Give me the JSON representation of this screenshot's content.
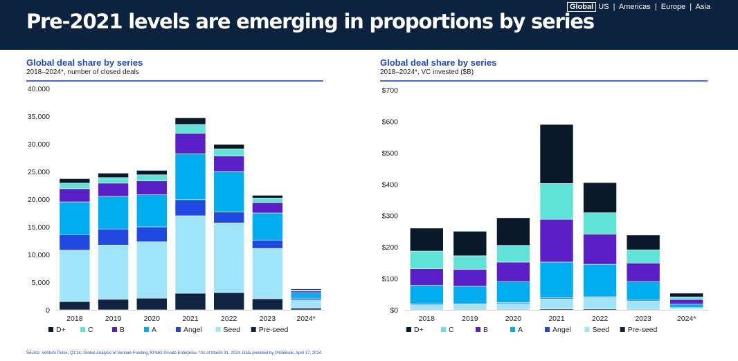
{
  "header": {
    "title": "Pre-2021 levels are emerging in proportions by series",
    "regions": [
      "Global",
      "US",
      "Americas",
      "Europe",
      "Asia"
    ],
    "selected_region": "Global"
  },
  "footer": {
    "source": "Source: Venture Pulse, Q1'24, Global Analysis of Venture Funding, KPMG Private Enterprise. *As of March 31, 2024. Data provided by PitchBook, April 17, 2024."
  },
  "colors": {
    "D+": "#0a1929",
    "C": "#5fe3d6",
    "B": "#5b1fc8",
    "A": "#00aeef",
    "Angel": "#1f49e0",
    "Seed": "#9fe4fb",
    "Pre-seed": "#0f2440"
  },
  "chart_data": [
    {
      "type": "bar",
      "stacked": true,
      "title": "Global deal share by series",
      "subtitle": "2018–2024*, number of closed deals",
      "categories": [
        "2018",
        "2019",
        "2020",
        "2021",
        "2022",
        "2023",
        "2024*"
      ],
      "ylim": [
        0,
        40000
      ],
      "yticks": [
        "0",
        "5,000",
        "10,000",
        "15,000",
        "20,000",
        "25,000",
        "30,000",
        "35,000",
        "40,000"
      ],
      "ytick_values": [
        0,
        5000,
        10000,
        15000,
        20000,
        25000,
        30000,
        35000,
        40000
      ],
      "legend_position": "bottom",
      "series": [
        {
          "name": "Pre-seed",
          "values": [
            1500,
            1900,
            2100,
            3000,
            3100,
            2000,
            300
          ]
        },
        {
          "name": "Seed",
          "values": [
            9300,
            9800,
            10200,
            14000,
            12600,
            9100,
            1500
          ]
        },
        {
          "name": "Angel",
          "values": [
            2800,
            2900,
            2700,
            2900,
            2000,
            1500,
            300
          ]
        },
        {
          "name": "A",
          "values": [
            5900,
            5900,
            5800,
            8300,
            7300,
            4900,
            1000
          ]
        },
        {
          "name": "B",
          "values": [
            2400,
            2400,
            2500,
            3700,
            2800,
            1900,
            300
          ]
        },
        {
          "name": "C",
          "values": [
            1000,
            1000,
            1100,
            1600,
            1300,
            800,
            200
          ]
        },
        {
          "name": "D+",
          "values": [
            800,
            800,
            800,
            1200,
            800,
            500,
            200
          ]
        }
      ]
    },
    {
      "type": "bar",
      "stacked": true,
      "title": "Global deal share by series",
      "subtitle": "2018–2024*, VC invested ($B)",
      "categories": [
        "2018",
        "2019",
        "2020",
        "2021",
        "2022",
        "2023",
        "2024*"
      ],
      "ylim": [
        0,
        700
      ],
      "yticks": [
        "$0",
        "$100",
        "$200",
        "$300",
        "$400",
        "$500",
        "$600",
        "$700"
      ],
      "ytick_values": [
        0,
        100,
        200,
        300,
        400,
        500,
        600,
        700
      ],
      "legend_position": "bottom",
      "series": [
        {
          "name": "Pre-seed",
          "values": [
            2,
            2,
            2,
            3,
            3,
            2,
            1
          ]
        },
        {
          "name": "Seed",
          "values": [
            14,
            15,
            18,
            32,
            36,
            26,
            5
          ]
        },
        {
          "name": "Angel",
          "values": [
            3,
            3,
            3,
            3,
            3,
            3,
            1
          ]
        },
        {
          "name": "A",
          "values": [
            59,
            55,
            67,
            114,
            103,
            59,
            11
          ]
        },
        {
          "name": "B",
          "values": [
            53,
            54,
            62,
            136,
            96,
            59,
            15
          ]
        },
        {
          "name": "C",
          "values": [
            56,
            43,
            53,
            114,
            68,
            42,
            8
          ]
        },
        {
          "name": "D+",
          "values": [
            73,
            78,
            88,
            188,
            96,
            47,
            12
          ]
        }
      ]
    }
  ],
  "legend_order": [
    "D+",
    "C",
    "B",
    "A",
    "Angel",
    "Seed",
    "Pre-seed"
  ]
}
